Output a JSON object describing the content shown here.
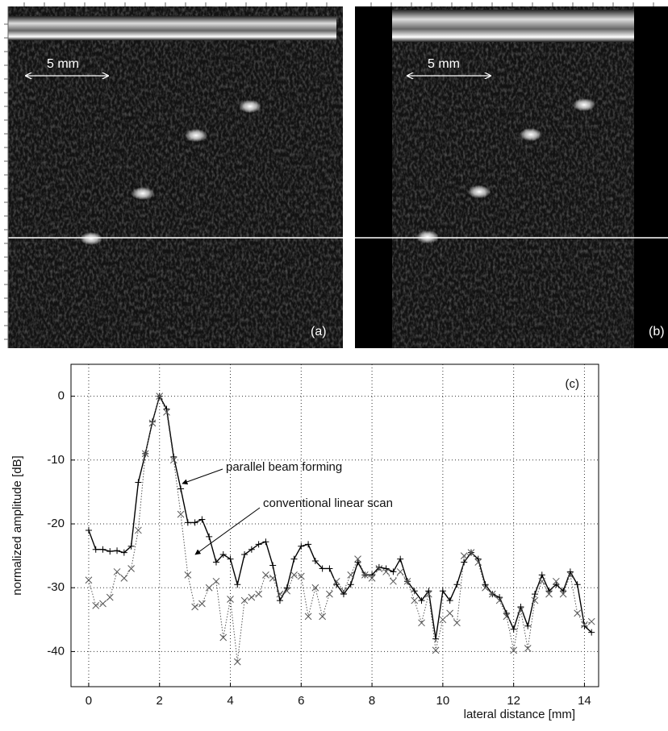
{
  "images": [
    {
      "scale_label": "5 mm",
      "label": "(a)"
    },
    {
      "scale_label": "5 mm",
      "label": "(b)"
    }
  ],
  "chart_data": {
    "type": "line",
    "label": "(c)",
    "xlabel": "lateral distance [mm]",
    "ylabel": "normalized amplitude [dB]",
    "annotations": [
      "parallel beam forming",
      "conventional linear scan"
    ],
    "x": [
      0,
      0.2,
      0.4,
      0.6,
      0.8,
      1.0,
      1.2,
      1.4,
      1.6,
      1.8,
      2.0,
      2.2,
      2.4,
      2.6,
      2.8,
      3.0,
      3.2,
      3.4,
      3.6,
      3.8,
      4.0,
      4.2,
      4.4,
      4.6,
      4.8,
      5.0,
      5.2,
      5.4,
      5.6,
      5.8,
      6.0,
      6.2,
      6.4,
      6.6,
      6.8,
      7.0,
      7.2,
      7.4,
      7.6,
      7.8,
      8.0,
      8.2,
      8.4,
      8.6,
      8.8,
      9.0,
      9.2,
      9.4,
      9.6,
      9.8,
      10.0,
      10.2,
      10.4,
      10.6,
      10.8,
      11.0,
      11.2,
      11.4,
      11.6,
      11.8,
      12.0,
      12.2,
      12.4,
      12.6,
      12.8,
      13.0,
      13.2,
      13.4,
      13.6,
      13.8,
      14.0,
      14.2
    ],
    "series": [
      {
        "name": "parallel beam forming",
        "color": "#000000",
        "dash": "none",
        "marker": "plus",
        "values": [
          -21,
          -24,
          -24,
          -24.3,
          -24.2,
          -24.5,
          -23.5,
          -13.5,
          -9,
          -4,
          0,
          -2,
          -9.5,
          -14.5,
          -19.8,
          -19.8,
          -19.3,
          -22,
          -26,
          -24.8,
          -25.5,
          -29.5,
          -24.8,
          -24,
          -23.2,
          -22.8,
          -26.5,
          -32,
          -30,
          -25.5,
          -23.5,
          -23.2,
          -25.8,
          -27,
          -27,
          -29.5,
          -31,
          -29.5,
          -26,
          -28,
          -28,
          -26.8,
          -27,
          -27.5,
          -25.5,
          -29,
          -30.5,
          -32,
          -30.5,
          -38,
          -30.5,
          -32,
          -29.5,
          -26,
          -24.5,
          -25.5,
          -29.5,
          -31,
          -31.5,
          -34,
          -36.5,
          -33,
          -36,
          -31,
          -28,
          -30.5,
          -29.5,
          -30.5,
          -27.5,
          -29.5,
          -36,
          -37
        ]
      },
      {
        "name": "conventional linear scan",
        "color": "#555555",
        "dash": "1.5 2",
        "marker": "cross",
        "values": [
          -28.8,
          -32.8,
          -32.5,
          -31.5,
          -27.5,
          -28.5,
          -27,
          -21,
          -9,
          -4.2,
          0,
          -2.5,
          -10,
          -18.5,
          -28,
          -33,
          -32.5,
          -30,
          -29,
          -37.8,
          -31.8,
          -41.6,
          -32,
          -31.5,
          -31,
          -28,
          -28.5,
          -31,
          -30.5,
          -28,
          -28.2,
          -34.5,
          -30,
          -34.5,
          -31,
          -29,
          -30.5,
          -28,
          -25.5,
          -28,
          -28.5,
          -27,
          -27.5,
          -29,
          -27.5,
          -29,
          -32,
          -35.5,
          -31,
          -39.8,
          -35,
          -34,
          -35.5,
          -25,
          -24.5,
          -26,
          -30,
          -31,
          -32,
          -34.5,
          -39.8,
          -33.5,
          -39.5,
          -32,
          -29,
          -31,
          -29,
          -31,
          -28,
          -34,
          -35.8,
          -35.3
        ]
      }
    ],
    "xlim": [
      -0.5,
      14.4
    ],
    "ylim": [
      -45.5,
      5
    ],
    "xticks": [
      0,
      2,
      4,
      6,
      8,
      10,
      12,
      14
    ],
    "yticks": [
      -40,
      -30,
      -20,
      -10,
      0
    ],
    "grid": true
  }
}
